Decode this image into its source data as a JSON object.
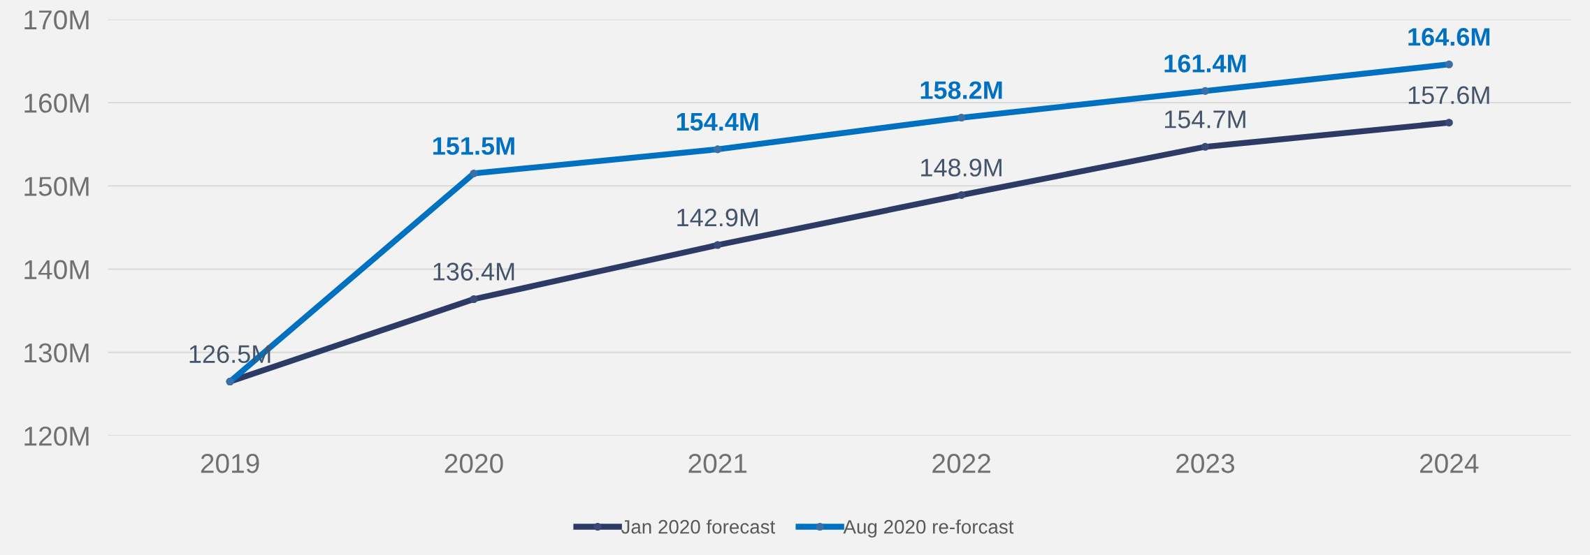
{
  "chart_data": {
    "type": "line",
    "categories": [
      "2019",
      "2020",
      "2021",
      "2022",
      "2023",
      "2024"
    ],
    "series": [
      {
        "name": "Jan 2020 forecast",
        "color": "#2e3a66",
        "values": [
          126.5,
          136.4,
          142.9,
          148.9,
          154.7,
          157.6
        ],
        "value_labels": [
          "126.5M",
          "136.4M",
          "142.9M",
          "148.9M",
          "154.7M",
          "157.6M"
        ]
      },
      {
        "name": "Aug 2020 re-forcast",
        "color": "#0070c0",
        "values": [
          126.5,
          151.5,
          154.4,
          158.2,
          161.4,
          164.6
        ],
        "value_labels": [
          null,
          "151.5M",
          "154.4M",
          "158.2M",
          "161.4M",
          "164.6M"
        ]
      }
    ],
    "ylim": [
      120,
      170
    ],
    "yticks": [
      {
        "value": 120,
        "label": "120M"
      },
      {
        "value": 130,
        "label": "130M"
      },
      {
        "value": 140,
        "label": "140M"
      },
      {
        "value": 150,
        "label": "150M"
      },
      {
        "value": 160,
        "label": "160M"
      },
      {
        "value": 170,
        "label": "170M"
      }
    ],
    "grid": "y",
    "legend": "bottom",
    "marker": "circle",
    "line_style": "solid"
  }
}
